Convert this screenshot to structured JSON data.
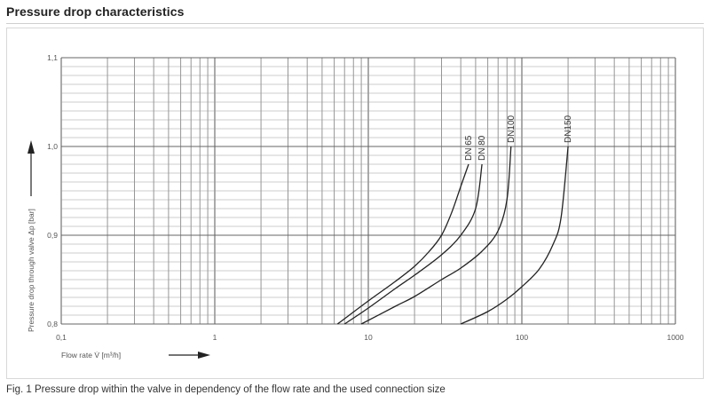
{
  "header": {
    "title": "Pressure drop characteristics"
  },
  "caption": "Fig. 1 Pressure drop within the valve in dependency of the flow rate and the used connection size",
  "chart_data": {
    "type": "line",
    "title": "",
    "xlabel": "Flow rate V̇  [m³/h]",
    "ylabel": "Pressure drop through valve Δp  [bar]",
    "xscale": "log",
    "xlim": [
      0.1,
      1000
    ],
    "ylim": [
      0.8,
      1.1
    ],
    "x_ticks": [
      0.1,
      1,
      10,
      100,
      1000
    ],
    "x_tick_labels": [
      "0,1",
      "1",
      "10",
      "100",
      "1000"
    ],
    "y_ticks": [
      0.8,
      0.9,
      1.0,
      1.1
    ],
    "y_tick_labels": [
      "0,8",
      "0,9",
      "1,0",
      "1,1"
    ],
    "grid": true,
    "legend": "labels on curves",
    "series": [
      {
        "name": "DN 65",
        "x": [
          6.3,
          10,
          15,
          20,
          25,
          30,
          35,
          40,
          45
        ],
        "y": [
          0.8,
          0.826,
          0.848,
          0.865,
          0.882,
          0.9,
          0.926,
          0.955,
          0.98
        ]
      },
      {
        "name": "DN 80",
        "x": [
          7.0,
          10,
          15,
          20,
          30,
          40,
          50,
          55
        ],
        "y": [
          0.8,
          0.818,
          0.84,
          0.855,
          0.878,
          0.9,
          0.93,
          0.98
        ]
      },
      {
        "name": "DN100",
        "x": [
          9.0,
          15,
          20,
          30,
          40,
          55,
          70,
          80,
          85
        ],
        "y": [
          0.8,
          0.82,
          0.831,
          0.85,
          0.863,
          0.882,
          0.905,
          0.94,
          1.0
        ]
      },
      {
        "name": "DN150",
        "x": [
          40,
          60,
          80,
          100,
          130,
          160,
          180,
          200
        ],
        "y": [
          0.8,
          0.814,
          0.828,
          0.842,
          0.862,
          0.89,
          0.92,
          1.0
        ]
      }
    ]
  }
}
